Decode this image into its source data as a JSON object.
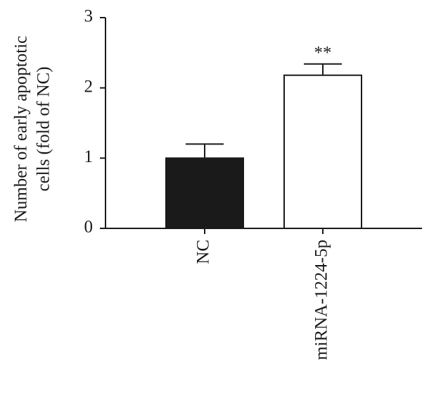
{
  "chart_data": {
    "type": "bar",
    "ylabel": [
      "Number of early apoptotic",
      "cells (fold of NC)"
    ],
    "categories": [
      "NC",
      "miRNA-1224-5p"
    ],
    "values": [
      1.0,
      2.18
    ],
    "errors": [
      0.2,
      0.16
    ],
    "colors": [
      "#1a1a1a",
      "#ffffff"
    ],
    "significance": [
      null,
      "**"
    ],
    "ylim": [
      0,
      3
    ],
    "yticks": [
      0,
      1,
      2,
      3
    ]
  }
}
